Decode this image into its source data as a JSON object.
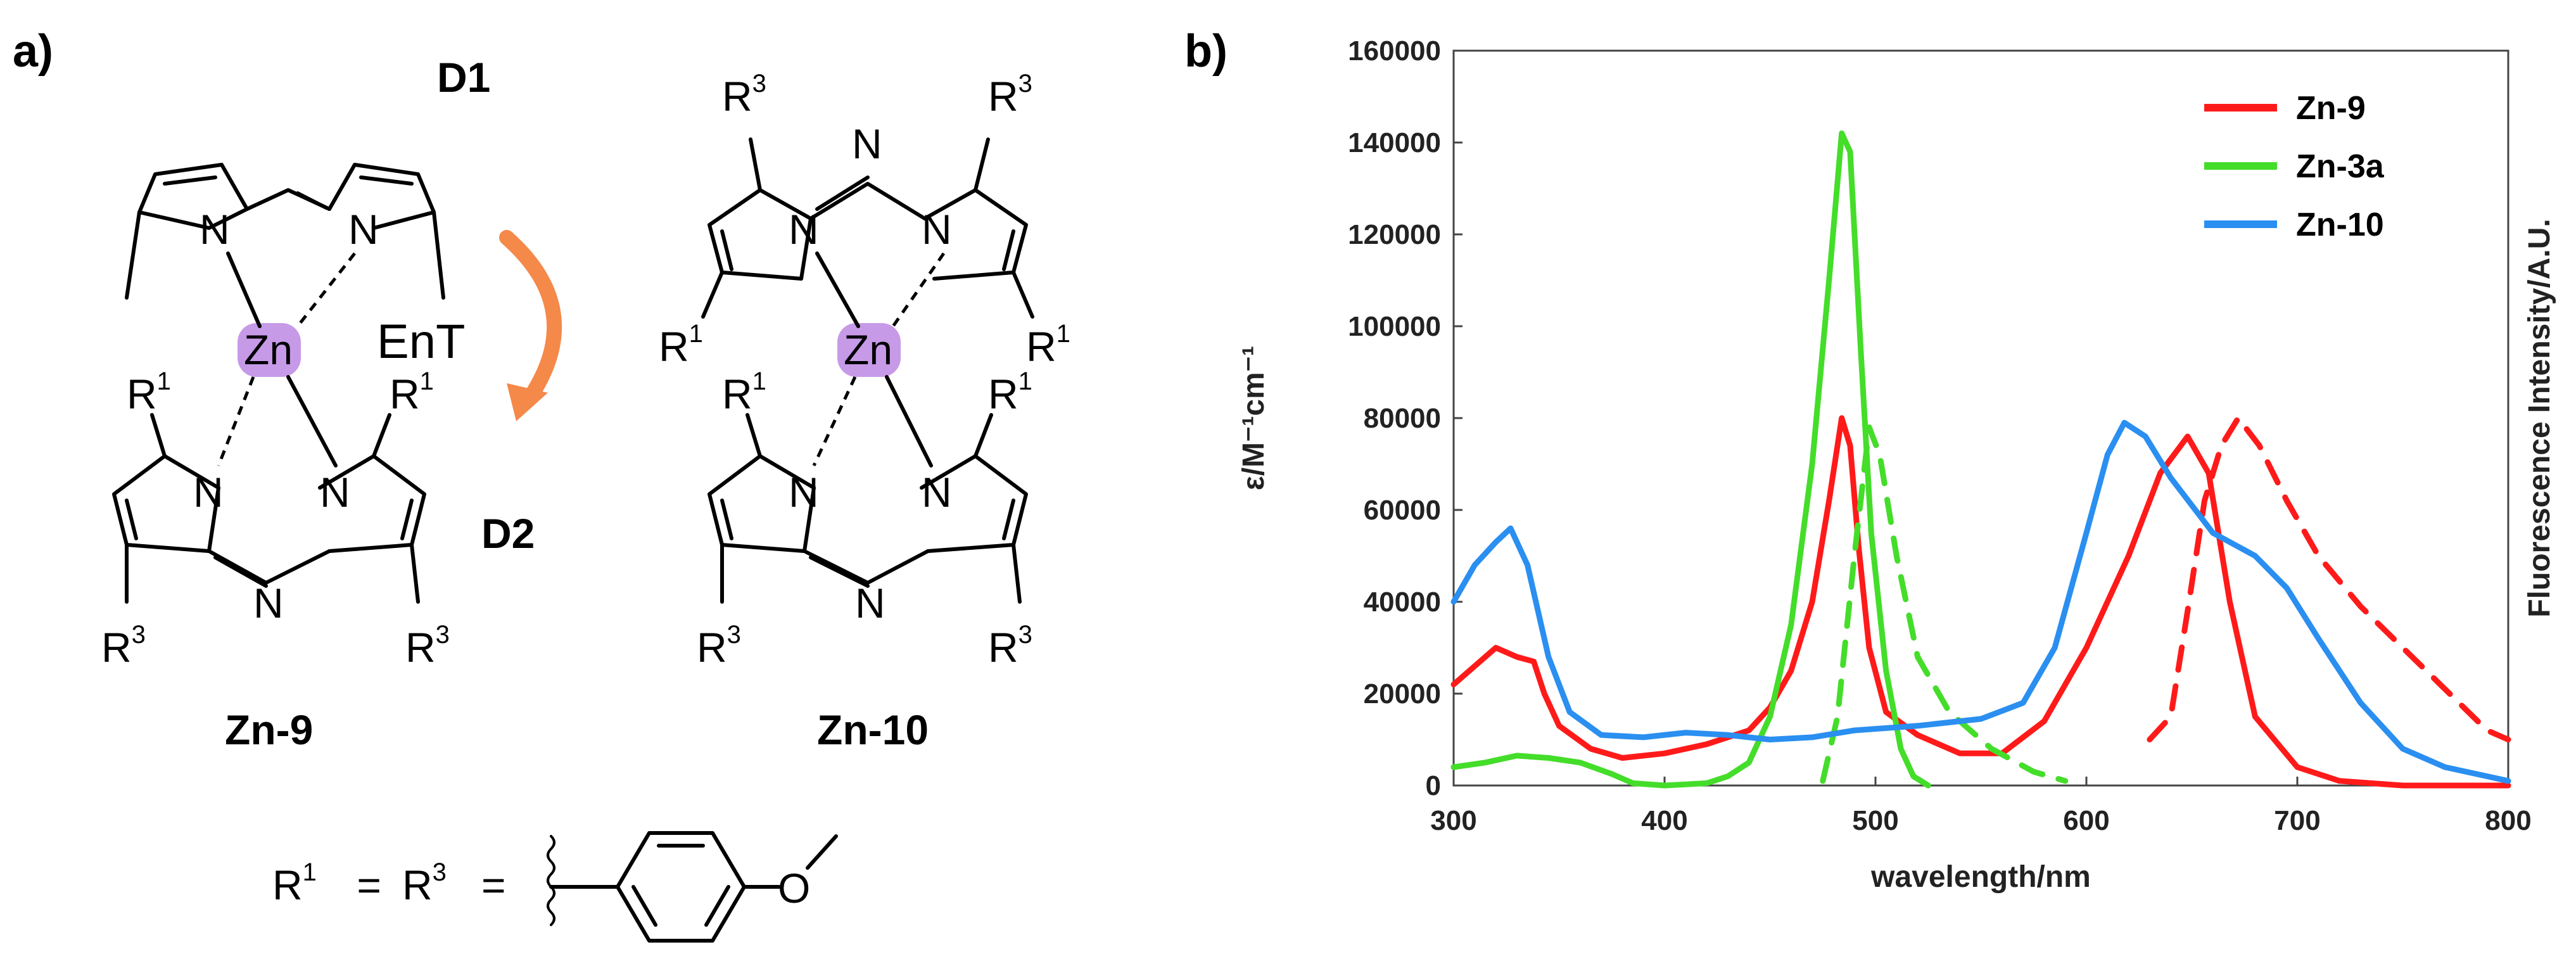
{
  "panel_a": {
    "label": "a)",
    "donor1": {
      "text": "D1",
      "color": "#5ec21f"
    },
    "donor2": {
      "text": "D2",
      "color": "#2ea6e6"
    },
    "ent": {
      "text": "EnT",
      "arrow_color": "#f4894a"
    },
    "metal": {
      "text": "Zn",
      "highlight": "#c79ae8"
    },
    "atom_N": "N",
    "r1_base": "R",
    "r1_sup": "1",
    "r3_base": "R",
    "r3_sup": "3",
    "compound_left": "Zn-9",
    "compound_right": "Zn-10",
    "substituent_prefix": "= ",
    "substituent_eq": " = ",
    "atom_O": "O"
  },
  "panel_b": {
    "label": "b)"
  },
  "chart_data": {
    "type": "line",
    "xlabel": "wavelength/nm",
    "ylabel": "ε/M⁻¹cm⁻¹",
    "ylabel_right": "Fluorescence Intensity/A.U.",
    "xlim": [
      300,
      800
    ],
    "ylim": [
      0,
      160000
    ],
    "xticks": [
      300,
      400,
      500,
      600,
      700,
      800
    ],
    "yticks": [
      0,
      20000,
      40000,
      60000,
      80000,
      100000,
      120000,
      140000,
      160000
    ],
    "legend_position": "top-right",
    "legend": [
      {
        "name": "Zn-9",
        "color": "#ff1a1a"
      },
      {
        "name": "Zn-3a",
        "color": "#44dd2a"
      },
      {
        "name": "Zn-10",
        "color": "#2a8ff0"
      }
    ],
    "series": [
      {
        "compound": "Zn-9",
        "kind": "absorption",
        "color": "#ff1a1a",
        "style": "solid",
        "points": [
          [
            300,
            22000
          ],
          [
            310,
            26000
          ],
          [
            320,
            30000
          ],
          [
            330,
            28000
          ],
          [
            338,
            27000
          ],
          [
            343,
            20000
          ],
          [
            350,
            13000
          ],
          [
            365,
            8000
          ],
          [
            380,
            6000
          ],
          [
            400,
            7000
          ],
          [
            420,
            9000
          ],
          [
            440,
            12000
          ],
          [
            450,
            17000
          ],
          [
            460,
            25000
          ],
          [
            470,
            40000
          ],
          [
            478,
            62000
          ],
          [
            484,
            80000
          ],
          [
            488,
            74000
          ],
          [
            492,
            52000
          ],
          [
            497,
            30000
          ],
          [
            505,
            16000
          ],
          [
            520,
            11000
          ],
          [
            540,
            7000
          ],
          [
            560,
            7000
          ],
          [
            580,
            14000
          ],
          [
            600,
            30000
          ],
          [
            620,
            50000
          ],
          [
            635,
            68000
          ],
          [
            648,
            76000
          ],
          [
            658,
            68000
          ],
          [
            668,
            40000
          ],
          [
            680,
            15000
          ],
          [
            700,
            4000
          ],
          [
            720,
            1000
          ],
          [
            750,
            0
          ],
          [
            800,
            0
          ]
        ]
      },
      {
        "compound": "Zn-9",
        "kind": "fluorescence",
        "color": "#ff1a1a",
        "style": "dashed",
        "points": [
          [
            630,
            10000
          ],
          [
            640,
            15000
          ],
          [
            648,
            38000
          ],
          [
            656,
            62000
          ],
          [
            664,
            74000
          ],
          [
            672,
            80000
          ],
          [
            682,
            74000
          ],
          [
            695,
            62000
          ],
          [
            710,
            50000
          ],
          [
            730,
            39000
          ],
          [
            750,
            30000
          ],
          [
            770,
            21000
          ],
          [
            790,
            12000
          ],
          [
            800,
            10000
          ]
        ]
      },
      {
        "compound": "Zn-3a",
        "kind": "absorption",
        "color": "#44dd2a",
        "style": "solid",
        "points": [
          [
            300,
            4000
          ],
          [
            315,
            5000
          ],
          [
            330,
            6500
          ],
          [
            345,
            6000
          ],
          [
            360,
            5000
          ],
          [
            375,
            2500
          ],
          [
            385,
            500
          ],
          [
            400,
            0
          ],
          [
            420,
            500
          ],
          [
            430,
            2000
          ],
          [
            440,
            5000
          ],
          [
            450,
            15000
          ],
          [
            460,
            35000
          ],
          [
            470,
            70000
          ],
          [
            478,
            110000
          ],
          [
            484,
            142000
          ],
          [
            488,
            138000
          ],
          [
            493,
            95000
          ],
          [
            498,
            55000
          ],
          [
            505,
            25000
          ],
          [
            512,
            8000
          ],
          [
            518,
            2000
          ],
          [
            525,
            0
          ]
        ]
      },
      {
        "compound": "Zn-3a",
        "kind": "fluorescence",
        "color": "#44dd2a",
        "style": "dashed",
        "points": [
          [
            475,
            1000
          ],
          [
            482,
            15000
          ],
          [
            490,
            50000
          ],
          [
            497,
            78000
          ],
          [
            502,
            72000
          ],
          [
            510,
            50000
          ],
          [
            520,
            28000
          ],
          [
            535,
            16000
          ],
          [
            555,
            8000
          ],
          [
            575,
            3000
          ],
          [
            590,
            1000
          ]
        ]
      },
      {
        "compound": "Zn-10",
        "kind": "absorption",
        "color": "#2a8ff0",
        "style": "solid",
        "points": [
          [
            300,
            40000
          ],
          [
            310,
            48000
          ],
          [
            320,
            53000
          ],
          [
            327,
            56000
          ],
          [
            335,
            48000
          ],
          [
            345,
            28000
          ],
          [
            355,
            16000
          ],
          [
            370,
            11000
          ],
          [
            390,
            10500
          ],
          [
            410,
            11500
          ],
          [
            430,
            11000
          ],
          [
            450,
            10000
          ],
          [
            470,
            10500
          ],
          [
            490,
            12000
          ],
          [
            520,
            13000
          ],
          [
            550,
            14500
          ],
          [
            570,
            18000
          ],
          [
            585,
            30000
          ],
          [
            600,
            55000
          ],
          [
            610,
            72000
          ],
          [
            618,
            79000
          ],
          [
            628,
            76000
          ],
          [
            640,
            67000
          ],
          [
            660,
            55000
          ],
          [
            680,
            50000
          ],
          [
            695,
            43000
          ],
          [
            710,
            32000
          ],
          [
            730,
            18000
          ],
          [
            750,
            8000
          ],
          [
            770,
            4000
          ],
          [
            790,
            2000
          ],
          [
            800,
            1000
          ]
        ]
      }
    ]
  }
}
